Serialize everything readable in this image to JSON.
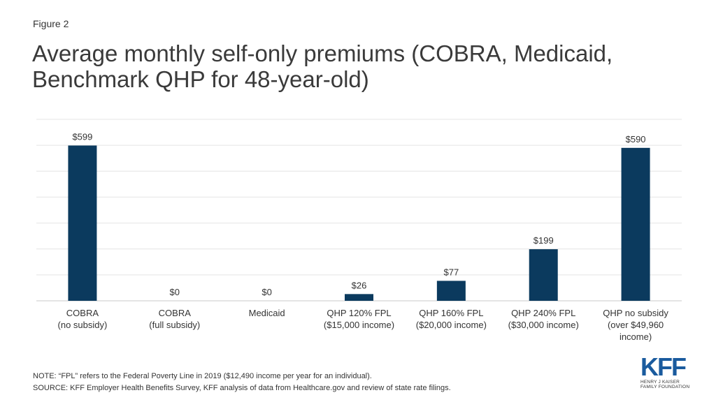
{
  "figure_label": "Figure 2",
  "title": "Average monthly self-only premiums (COBRA, Medicaid, Benchmark QHP for 48-year-old)",
  "note": "NOTE: “FPL” refers to the Federal Poverty Line in 2019 ($12,490 income per year for an individual).",
  "source": "SOURCE: KFF Employer Health Benefits Survey, KFF analysis of data from Healthcare.gov and review of state rate filings.",
  "logo": {
    "mark": "KFF",
    "line1": "HENRY J KAISER",
    "line2": "FAMILY FOUNDATION"
  },
  "colors": {
    "bar": "#0b3a5e",
    "grid": "#e4e4e4",
    "axis": "#c8c8c8"
  },
  "chart_data": {
    "type": "bar",
    "title": "Average monthly self-only premiums (COBRA, Medicaid, Benchmark QHP for 48-year-old)",
    "xlabel": "",
    "ylabel": "",
    "ylim": [
      0,
      700
    ],
    "grid": true,
    "categories": [
      "COBRA\n(no subsidy)",
      "COBRA\n(full subsidy)",
      "Medicaid",
      "QHP 120% FPL\n($15,000 income)",
      "QHP 160% FPL\n($20,000 income)",
      "QHP 240% FPL\n($30,000 income)",
      "QHP no subsidy\n(over $49,960\nincome)"
    ],
    "values": [
      599,
      0,
      0,
      26,
      77,
      199,
      590
    ],
    "value_labels": [
      "$599",
      "$0",
      "$0",
      "$26",
      "$77",
      "$199",
      "$590"
    ]
  }
}
